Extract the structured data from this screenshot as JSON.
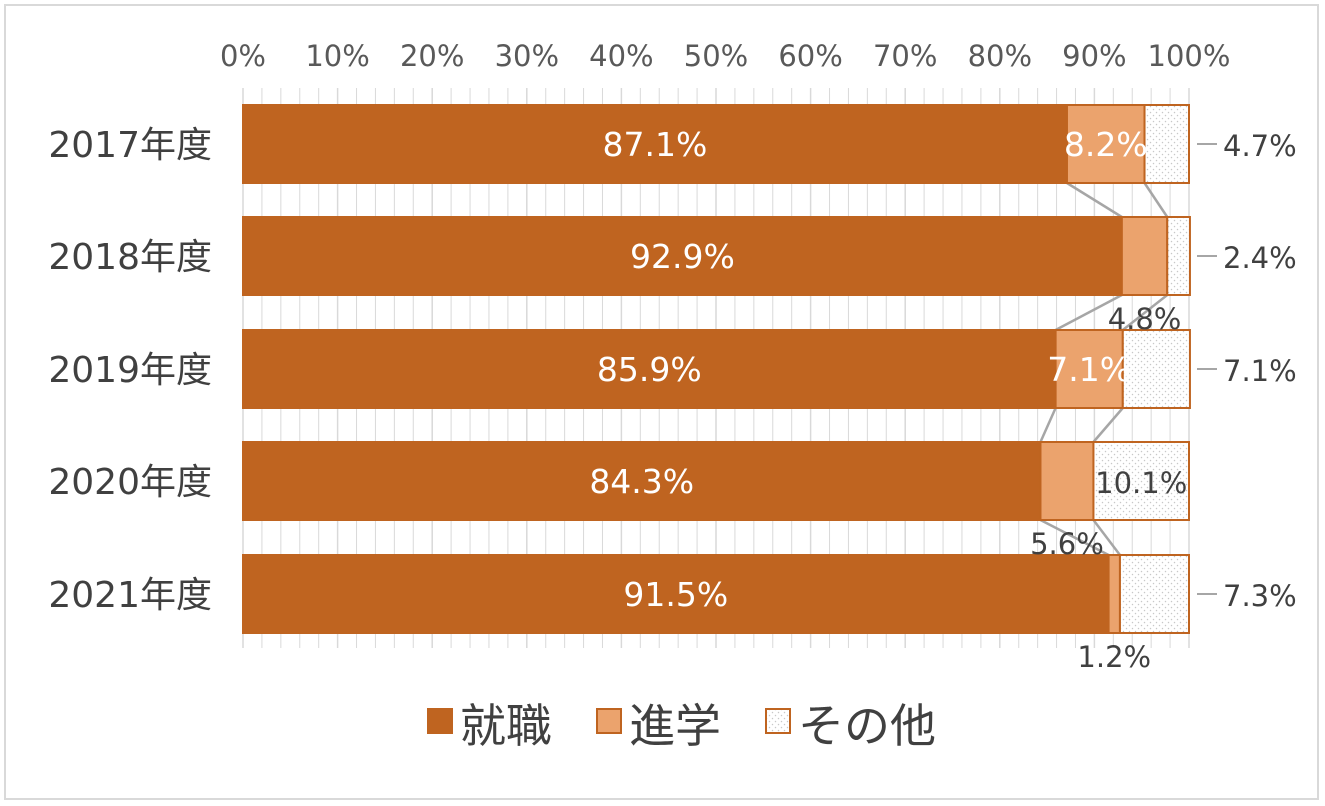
{
  "chart_data": {
    "type": "bar",
    "orientation": "horizontal",
    "stacked": "percent",
    "categories": [
      "2017年度",
      "2018年度",
      "2019年度",
      "2020年度",
      "2021年度"
    ],
    "series": [
      {
        "name": "就職",
        "values": [
          87.1,
          92.9,
          85.9,
          84.3,
          91.5
        ],
        "labels": [
          "87.1%",
          "92.9%",
          "85.9%",
          "84.3%",
          "91.5%"
        ]
      },
      {
        "name": "進学",
        "values": [
          8.2,
          4.8,
          7.1,
          5.6,
          1.2
        ],
        "labels": [
          "8.2%",
          "4.8%",
          "7.1%",
          "5.6%",
          "1.2%"
        ]
      },
      {
        "name": "その他",
        "values": [
          4.7,
          2.4,
          7.1,
          10.1,
          7.3
        ],
        "labels": [
          "4.7%",
          "2.4%",
          "7.1%",
          "10.1%",
          "7.3%"
        ]
      }
    ],
    "xticks": [
      "0%",
      "10%",
      "20%",
      "30%",
      "40%",
      "50%",
      "60%",
      "70%",
      "80%",
      "90%",
      "100%"
    ],
    "xlim": [
      0,
      100
    ],
    "axis_position": "top",
    "grid": true,
    "series_lines": true,
    "legend": "bottom",
    "colors": {
      "就職": "#bf6420",
      "進学": "#eba36d",
      "その他": "#ffffff",
      "border": "#bf6420",
      "dots": "#cfcfcf",
      "grid": "#d9d9d9",
      "connector": "#a6a6a6"
    }
  }
}
